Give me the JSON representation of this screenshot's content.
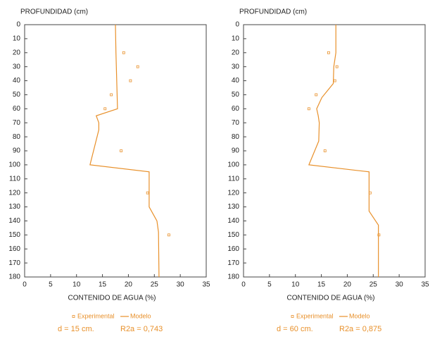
{
  "chart_data": [
    {
      "type": "scatter-line",
      "y_label": "PROFUNDIDAD (cm)",
      "x_label": "CONTENIDO DE AGUA (%)",
      "xlim": [
        0,
        35
      ],
      "ylim": [
        0,
        180
      ],
      "xticks": [
        0,
        5,
        10,
        15,
        20,
        25,
        30,
        35
      ],
      "yticks": [
        0,
        10,
        20,
        30,
        40,
        50,
        60,
        70,
        80,
        90,
        100,
        110,
        120,
        130,
        140,
        150,
        160,
        170,
        180
      ],
      "y_inverted": true,
      "series": [
        {
          "name": "Experimental",
          "color": "#e8902a",
          "x": [
            19.1,
            21.8,
            20.4,
            16.7,
            15.5,
            18.6,
            23.7,
            27.8
          ],
          "y": [
            20,
            30,
            40,
            50,
            60,
            90,
            120,
            150
          ]
        },
        {
          "name": "Modelo",
          "color": "#e8902a",
          "x": [
            17.5,
            17.6,
            17.9,
            13.8,
            14.3,
            14.3,
            12.6,
            24,
            24,
            25.5,
            25.8,
            25.9
          ],
          "y": [
            0,
            20,
            60,
            65,
            70,
            75,
            100,
            105,
            130,
            140,
            148,
            180
          ]
        }
      ],
      "caption": [
        "d = 15 cm.",
        "R2a = 0,743"
      ]
    },
    {
      "type": "scatter-line",
      "y_label": "PROFUNDIDAD (cm)",
      "x_label": "CONTENIDO DE AGUA (%)",
      "xlim": [
        0,
        35
      ],
      "ylim": [
        0,
        180
      ],
      "xticks": [
        0,
        5,
        10,
        15,
        20,
        25,
        30,
        35
      ],
      "yticks": [
        0,
        10,
        20,
        30,
        40,
        50,
        60,
        70,
        80,
        90,
        100,
        110,
        120,
        130,
        140,
        150,
        160,
        170,
        180
      ],
      "y_inverted": true,
      "series": [
        {
          "name": "Experimental",
          "color": "#e8902a",
          "x": [
            16.4,
            18,
            17.6,
            14,
            12.6,
            15.7,
            24.4,
            26.1
          ],
          "y": [
            20,
            30,
            40,
            50,
            60,
            90,
            120,
            150
          ]
        },
        {
          "name": "Modelo",
          "color": "#e8902a",
          "x": [
            17.8,
            17.8,
            17.4,
            17.3,
            15.1,
            14.1,
            14.4,
            14.6,
            14.5,
            12.6,
            24.2,
            24.2,
            26,
            26
          ],
          "y": [
            0,
            20,
            30,
            42,
            52,
            60,
            65,
            70,
            83,
            100,
            105,
            133,
            143,
            180
          ]
        }
      ],
      "caption": [
        "d = 60 cm.",
        "R2a = 0,875"
      ]
    }
  ]
}
